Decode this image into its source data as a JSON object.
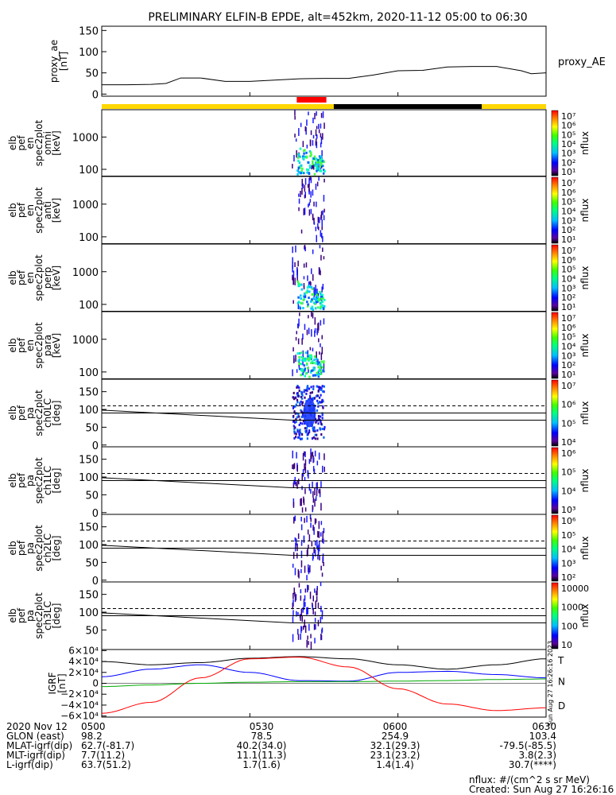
{
  "title": "PRELIMINARY ELFIN-B EPDE, alt=452km, 2020-11-12 05:00 to 06:30",
  "colors": {
    "yellow": "#ffd700",
    "black": "#000000",
    "red": "#ff0000",
    "blue": "#0000ff",
    "green": "#00aa00"
  },
  "chart_data": [
    {
      "type": "line",
      "panel": "proxy_ae",
      "ylabel_lines": [
        "proxy_ae",
        "[nT]"
      ],
      "legend": "proxy_AE",
      "ylim": [
        -5,
        160
      ],
      "yticks": [
        "150",
        "100",
        "50",
        "0"
      ],
      "x_minutes": [
        0,
        5,
        10,
        13,
        16,
        20,
        25,
        30,
        35,
        40,
        45,
        50,
        55,
        60,
        65,
        70,
        75,
        80,
        85,
        87,
        90
      ],
      "values": [
        22,
        22,
        23,
        25,
        38,
        38,
        30,
        30,
        33,
        36,
        37,
        37,
        45,
        55,
        56,
        64,
        65,
        65,
        55,
        48,
        50
      ]
    },
    {
      "type": "bar",
      "panel": "region-bar",
      "segments": [
        {
          "start": 0,
          "end": 47,
          "color": "yellow"
        },
        {
          "start": 47,
          "end": 77,
          "color": "black"
        },
        {
          "start": 77,
          "end": 90,
          "color": "yellow"
        }
      ],
      "marks": [
        {
          "start": 39.5,
          "end": 45.5,
          "color": "red"
        }
      ]
    },
    {
      "type": "heatmap",
      "panel": "spec-en-omni",
      "ylabel_lines": [
        "elb",
        "pef",
        "en",
        "spec2plot",
        "omni",
        "[keV]"
      ],
      "yscale": "log",
      "ylim": [
        60,
        7000
      ],
      "yticks": [
        "1000",
        "100"
      ],
      "colorbar": {
        "label": "nflux",
        "ticks": [
          "10⁷",
          "10⁶",
          "10⁵",
          "10⁴",
          "10³",
          "10²",
          "10¹"
        ]
      },
      "burst_start_min": 38.5,
      "burst_end_min": 45
    },
    {
      "type": "heatmap",
      "panel": "spec-en-anti",
      "ylabel_lines": [
        "elb",
        "pef",
        "en",
        "spec2plot",
        "anti",
        "[keV]"
      ],
      "yscale": "log",
      "ylim": [
        60,
        7000
      ],
      "yticks": [
        "1000",
        "100"
      ],
      "colorbar": {
        "label": "nflux",
        "ticks": [
          "10⁷",
          "10⁶",
          "10⁵",
          "10⁴",
          "10³",
          "10²",
          "10¹"
        ]
      },
      "burst_start_min": 39.5,
      "burst_end_min": 45
    },
    {
      "type": "heatmap",
      "panel": "spec-en-perp",
      "ylabel_lines": [
        "elb",
        "pef",
        "en",
        "spec2plot",
        "perp",
        "[keV]"
      ],
      "yscale": "log",
      "ylim": [
        60,
        7000
      ],
      "yticks": [
        "1000",
        "100"
      ],
      "colorbar": {
        "label": "nflux",
        "ticks": [
          "10⁷",
          "10⁶",
          "10⁵",
          "10⁴",
          "10³",
          "10²",
          "10¹"
        ]
      },
      "burst_start_min": 38.5,
      "burst_end_min": 45
    },
    {
      "type": "heatmap",
      "panel": "spec-en-para",
      "ylabel_lines": [
        "elb",
        "pef",
        "en",
        "spec2plot",
        "para",
        "[keV]"
      ],
      "yscale": "log",
      "ylim": [
        60,
        7000
      ],
      "yticks": [
        "1000",
        "100"
      ],
      "colorbar": {
        "label": "nflux",
        "ticks": [
          "10⁷",
          "10⁶",
          "10⁵",
          "10⁴",
          "10³",
          "10²",
          "10¹"
        ]
      },
      "burst_start_min": 38.5,
      "burst_end_min": 45
    },
    {
      "type": "heatmap",
      "panel": "spec-pa-ch0",
      "ylabel_lines": [
        "elb",
        "pef",
        "pa",
        "spec2plot",
        "ch0LC",
        "[deg]"
      ],
      "ylim": [
        -5,
        185
      ],
      "yticks": [
        "150",
        "100",
        "50",
        "0"
      ],
      "losscone_start": 98,
      "losscone_end": 70,
      "antilosscone": 110,
      "line90": 90,
      "colorbar": {
        "label": "nflux",
        "ticks": [
          "10⁷",
          "10⁶",
          "10⁵",
          "10⁴"
        ]
      },
      "burst_start_min": 38.5,
      "burst_end_min": 45
    },
    {
      "type": "heatmap",
      "panel": "spec-pa-ch1",
      "ylabel_lines": [
        "elb",
        "pef",
        "pa",
        "spec2plot",
        "ch1LC",
        "[deg]"
      ],
      "ylim": [
        -5,
        185
      ],
      "yticks": [
        "150",
        "100",
        "50",
        "0"
      ],
      "losscone_start": 98,
      "losscone_end": 70,
      "antilosscone": 110,
      "line90": 90,
      "colorbar": {
        "label": "nflux",
        "ticks": [
          "10⁶",
          "10⁵",
          "10⁴",
          "10³"
        ]
      },
      "burst_start_min": 38.5,
      "burst_end_min": 45
    },
    {
      "type": "heatmap",
      "panel": "spec-pa-ch2",
      "ylabel_lines": [
        "elb",
        "pef",
        "pa",
        "spec2plot",
        "ch2LC",
        "[deg]"
      ],
      "ylim": [
        -5,
        185
      ],
      "yticks": [
        "150",
        "100",
        "50",
        "0"
      ],
      "losscone_start": 98,
      "losscone_end": 70,
      "antilosscone": 110,
      "line90": 90,
      "colorbar": {
        "label": "nflux",
        "ticks": [
          "10⁶",
          "10⁵",
          "10⁴",
          "10³",
          "10²"
        ]
      },
      "burst_start_min": 38.5,
      "burst_end_min": 45
    },
    {
      "type": "heatmap",
      "panel": "spec-pa-ch3",
      "ylabel_lines": [
        "elb",
        "pef",
        "pa",
        "spec2plot",
        "ch3LC",
        "[deg]"
      ],
      "ylim": [
        -5,
        185
      ],
      "yticks": [
        "150",
        "100",
        "50"
      ],
      "losscone_start": 98,
      "losscone_end": 70,
      "antilosscone": 110,
      "line90": 90,
      "colorbar": {
        "label": "nflux",
        "ticks": [
          "10000",
          "1000",
          "100",
          "10"
        ]
      },
      "burst_start_min": 38.5,
      "burst_end_min": 45
    },
    {
      "type": "line",
      "panel": "igrf",
      "ylabel_lines": [
        "IGRF",
        "[nT]"
      ],
      "ylim": [
        -62000,
        62000
      ],
      "yticks": [
        "6×10⁴",
        "4×10⁴",
        "2×10⁴",
        "0",
        "−2×10⁴",
        "−4×10⁴",
        "−6×10⁴"
      ],
      "x_minutes": [
        0,
        10,
        20,
        30,
        40,
        50,
        60,
        70,
        80,
        90
      ],
      "series": [
        {
          "name": "T",
          "color": "black",
          "values": [
            40000,
            34000,
            38000,
            46000,
            49000,
            45000,
            34000,
            26000,
            34000,
            45000
          ]
        },
        {
          "name": "N",
          "color": "blue",
          "values": [
            12000,
            26000,
            34000,
            20000,
            5000,
            4000,
            20000,
            22000,
            16000,
            10000
          ]
        },
        {
          "name": "",
          "color": "green",
          "values": [
            -6000,
            -3000,
            0,
            2000,
            3000,
            3000,
            4000,
            5000,
            7000,
            8000
          ]
        },
        {
          "name": "D",
          "color": "red",
          "values": [
            -55000,
            -35000,
            10000,
            45000,
            48000,
            30000,
            -10000,
            -38000,
            -50000,
            -45000
          ]
        }
      ],
      "legend_labels": [
        "T",
        "N",
        "D"
      ]
    }
  ],
  "side_stamp": "Sun Aug 27 16:26:16 2023",
  "footer": {
    "rows": [
      {
        "label": "2020 Nov 12",
        "values": [
          "0500",
          "0530",
          "0600",
          "0630"
        ]
      },
      {
        "label": "GLON (east)",
        "values": [
          "98.2",
          "78.5",
          "254.9",
          "103.4"
        ]
      },
      {
        "label": "MLAT-igrf(dip)",
        "values": [
          "62.7(-81.7)",
          "40.2(34.0)",
          "32.1(29.3)",
          "-79.5(-85.5)"
        ]
      },
      {
        "label": "MLT-igrf(dip)",
        "values": [
          "7.7(11.2)",
          "11.1(11.3)",
          "23.1(23.2)",
          "3.8(2.3)"
        ]
      },
      {
        "label": "L-igrf(dip)",
        "values": [
          "63.7(51.2)",
          "1.7(1.6)",
          "1.4(1.4)",
          "30.7(****)"
        ]
      }
    ],
    "units_note": "nflux: #/(cm^2 s sr MeV)",
    "created": "Created: Sun Aug 27 16:26:16 2023"
  }
}
